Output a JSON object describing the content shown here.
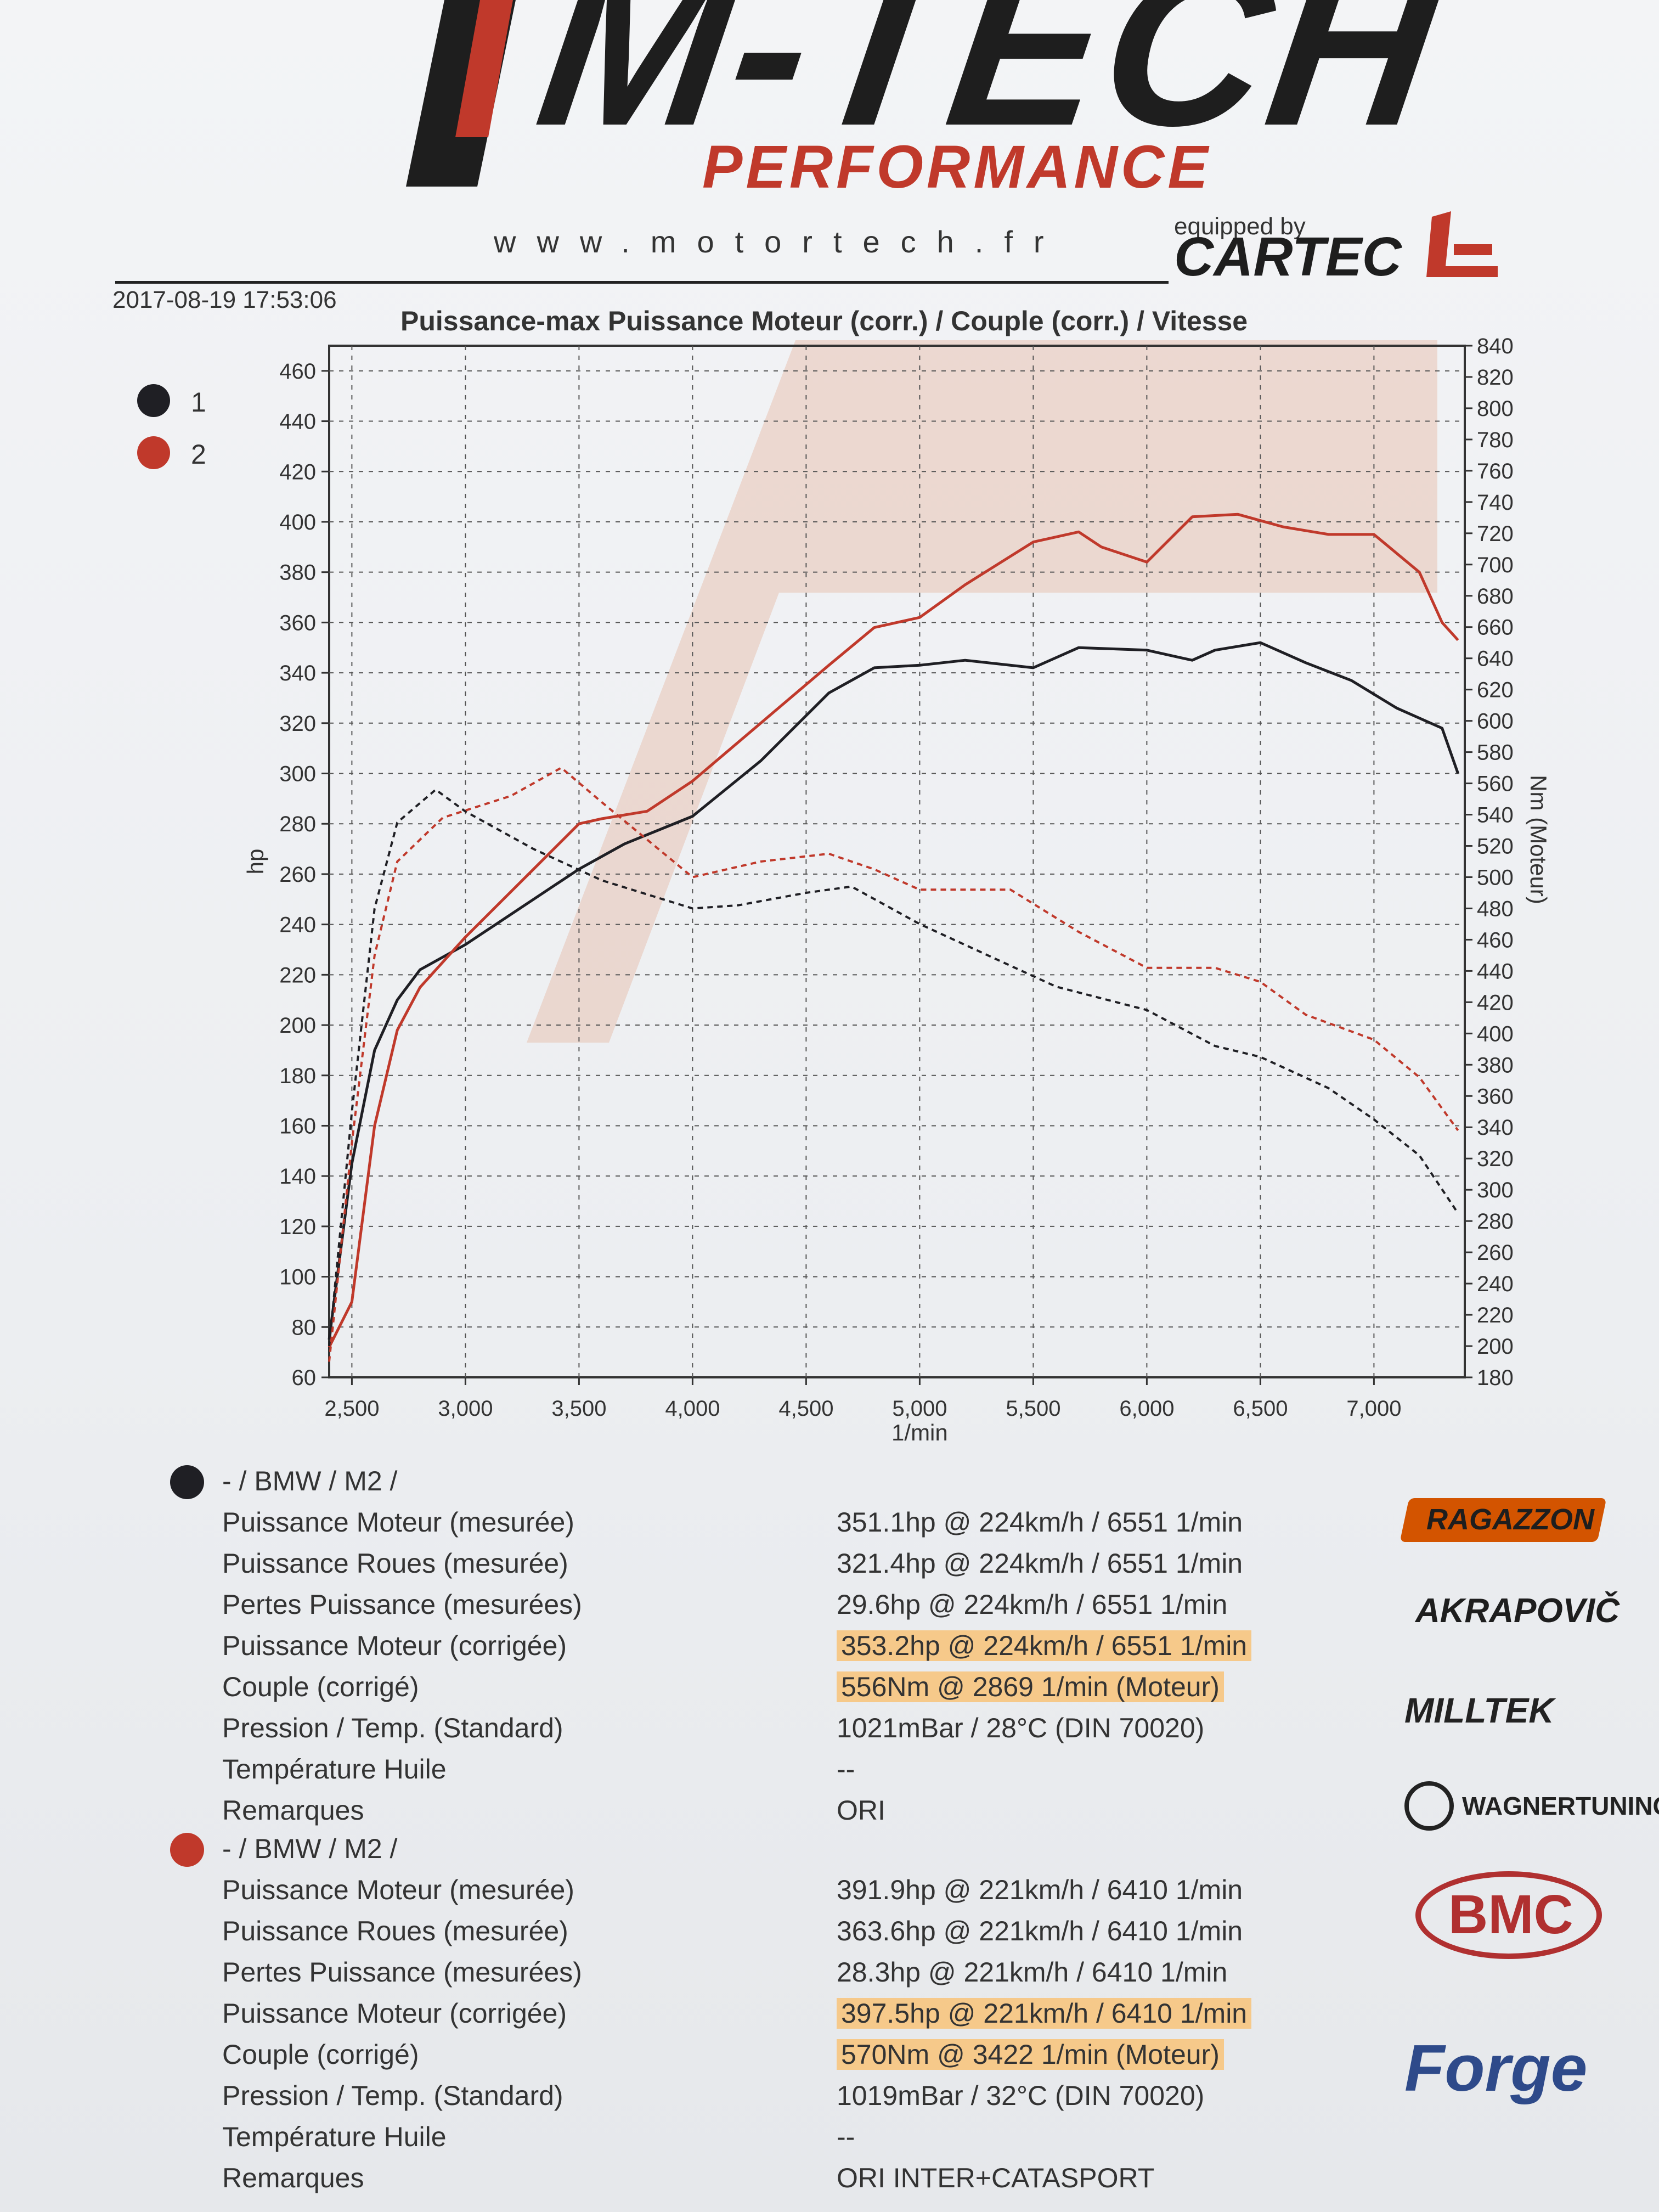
{
  "header": {
    "logo_text": "M-TECH",
    "logo_sub": "PERFORMANCE",
    "website": "www.motortech.fr",
    "equipped_by": "equipped by",
    "cartec": "CARTEC"
  },
  "report": {
    "datetime": "2017-08-19 17:53:06",
    "title": "Puissance-max Puissance Moteur (corr.) / Couple (corr.) / Vitesse"
  },
  "legend": [
    {
      "label": "1",
      "color": "#1f1f24"
    },
    {
      "label": "2",
      "color": "#c0392b"
    }
  ],
  "chart_data": {
    "type": "line",
    "title": "Puissance-max Puissance Moteur (corr.) / Couple (corr.) / Vitesse",
    "xlabel": "1/min",
    "ylabel_left": "hp",
    "ylabel_right": "Nm (Moteur)",
    "xlim": [
      2400,
      7400
    ],
    "ylim_left": [
      60,
      470
    ],
    "ylim_right": [
      180,
      840
    ],
    "x_ticks": [
      2500,
      3000,
      3500,
      4000,
      4500,
      5000,
      5500,
      6000,
      6500,
      7000
    ],
    "x_tick_labels": [
      "2,500",
      "3,000",
      "3,500",
      "4,000",
      "4,500",
      "5,000",
      "5,500",
      "6,000",
      "6,500",
      "7,000"
    ],
    "y_left_ticks": [
      60,
      80,
      100,
      120,
      140,
      160,
      180,
      200,
      220,
      240,
      260,
      280,
      300,
      320,
      340,
      360,
      380,
      400,
      420,
      440,
      460
    ],
    "y_right_ticks": [
      180,
      200,
      220,
      240,
      260,
      280,
      300,
      320,
      340,
      360,
      380,
      400,
      420,
      440,
      460,
      480,
      500,
      520,
      540,
      560,
      580,
      600,
      620,
      640,
      660,
      680,
      700,
      720,
      740,
      760,
      780,
      800,
      820,
      840
    ],
    "grid": true,
    "series": [
      {
        "name": "1",
        "kind": "power",
        "axis": "left",
        "color": "#1f1f24",
        "dash": "solid",
        "x": [
          2400,
          2500,
          2600,
          2700,
          2800,
          3000,
          3300,
          3500,
          3700,
          4000,
          4300,
          4600,
          4800,
          5000,
          5200,
          5500,
          5700,
          6000,
          6200,
          6300,
          6500,
          6700,
          6900,
          7100,
          7300,
          7370
        ],
        "y": [
          75,
          145,
          190,
          210,
          222,
          232,
          250,
          262,
          272,
          283,
          305,
          332,
          342,
          343,
          345,
          342,
          350,
          349,
          345,
          349,
          352,
          344,
          337,
          326,
          318,
          300
        ]
      },
      {
        "name": "2",
        "kind": "power",
        "axis": "left",
        "color": "#c0392b",
        "dash": "solid",
        "x": [
          2400,
          2500,
          2600,
          2700,
          2800,
          3000,
          3300,
          3500,
          3600,
          3800,
          4000,
          4300,
          4600,
          4800,
          5000,
          5200,
          5500,
          5700,
          5800,
          6000,
          6200,
          6400,
          6600,
          6800,
          7000,
          7200,
          7300,
          7370
        ],
        "y": [
          72,
          90,
          160,
          198,
          215,
          235,
          262,
          280,
          282,
          285,
          297,
          320,
          343,
          358,
          362,
          375,
          392,
          396,
          390,
          384,
          402,
          403,
          398,
          395,
          395,
          380,
          360,
          353
        ]
      },
      {
        "name": "1",
        "kind": "torque",
        "axis": "right",
        "color": "#1f1f24",
        "dash": "dashed",
        "x": [
          2400,
          2500,
          2600,
          2700,
          2869,
          3000,
          3300,
          3600,
          4000,
          4200,
          4500,
          4700,
          5000,
          5300,
          5600,
          6000,
          6300,
          6500,
          6800,
          7000,
          7200,
          7370
        ],
        "y": [
          200,
          350,
          480,
          535,
          556,
          542,
          518,
          498,
          480,
          482,
          490,
          494,
          470,
          450,
          430,
          415,
          392,
          385,
          365,
          345,
          322,
          285
        ]
      },
      {
        "name": "2",
        "kind": "torque",
        "axis": "right",
        "color": "#c0392b",
        "dash": "dashed",
        "x": [
          2400,
          2500,
          2600,
          2700,
          2900,
          3200,
          3422,
          3600,
          4000,
          4300,
          4600,
          4800,
          5000,
          5400,
          5700,
          6000,
          6300,
          6500,
          6700,
          7000,
          7200,
          7370
        ],
        "y": [
          190,
          330,
          450,
          510,
          538,
          552,
          570,
          548,
          500,
          510,
          515,
          505,
          492,
          492,
          465,
          442,
          442,
          433,
          412,
          396,
          372,
          338
        ]
      }
    ]
  },
  "runs": [
    {
      "title": "- / BMW / M2 /",
      "color": "#1f1f24",
      "rows": [
        {
          "label": "Puissance Moteur (mesurée)",
          "value": "351.1hp @ 224km/h / 6551 1/min"
        },
        {
          "label": "Puissance Roues (mesurée)",
          "value": "321.4hp @ 224km/h / 6551 1/min"
        },
        {
          "label": "Pertes Puissance (mesurées)",
          "value": "29.6hp @ 224km/h / 6551 1/min"
        },
        {
          "label": "Puissance Moteur (corrigée)",
          "value": "353.2hp @ 224km/h / 6551 1/min"
        },
        {
          "label": "Couple (corrigé)",
          "value": "556Nm @ 2869 1/min (Moteur)"
        },
        {
          "label": "Pression / Temp. (Standard)",
          "value": "1021mBar / 28°C   (DIN 70020)"
        },
        {
          "label": "Température Huile",
          "value": "--"
        },
        {
          "label": "Remarques",
          "value": "ORI"
        }
      ]
    },
    {
      "title": "- / BMW / M2 /",
      "color": "#c0392b",
      "rows": [
        {
          "label": "Puissance Moteur (mesurée)",
          "value": "391.9hp @ 221km/h / 6410 1/min"
        },
        {
          "label": "Puissance Roues (mesurée)",
          "value": "363.6hp @ 221km/h / 6410 1/min"
        },
        {
          "label": "Pertes Puissance (mesurées)",
          "value": "28.3hp @ 221km/h / 6410 1/min"
        },
        {
          "label": "Puissance Moteur (corrigée)",
          "value": "397.5hp @ 221km/h / 6410 1/min"
        },
        {
          "label": "Couple (corrigé)",
          "value": "570Nm @ 3422 1/min (Moteur)"
        },
        {
          "label": "Pression / Temp. (Standard)",
          "value": "1019mBar / 32°C   (DIN 70020)"
        },
        {
          "label": "Température Huile",
          "value": "--"
        },
        {
          "label": "Remarques",
          "value": "ORI INTER+CATASPORT"
        }
      ]
    }
  ],
  "sponsors": [
    "RAGAZZON",
    "AKRAPOVIČ",
    "MILLTEK",
    "WAGNERTUNING",
    "BMC",
    "Forge"
  ]
}
